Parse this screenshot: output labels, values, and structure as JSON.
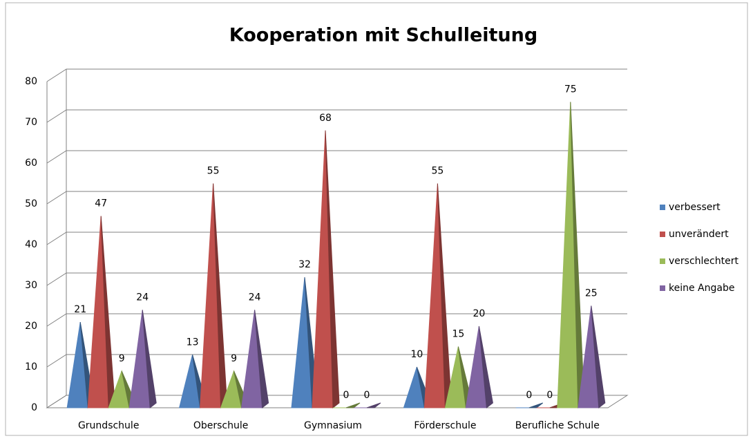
{
  "chart_data": {
    "type": "pyramid",
    "title": "Kooperation mit Schulleitung",
    "categories": [
      "Grundschule",
      "Oberschule",
      "Gymnasium",
      "Förderschule",
      "Berufliche Schule"
    ],
    "series": [
      {
        "name": "verbessert",
        "color": "#4f81bd",
        "values": [
          21,
          13,
          32,
          10,
          0
        ]
      },
      {
        "name": "unverändert",
        "color": "#c0504d",
        "values": [
          47,
          55,
          68,
          55,
          0
        ]
      },
      {
        "name": "verschlechtert",
        "color": "#9bbb59",
        "values": [
          9,
          9,
          0,
          15,
          75
        ]
      },
      {
        "name": "keine Angabe",
        "color": "#8064a2",
        "values": [
          24,
          24,
          0,
          20,
          25
        ]
      }
    ],
    "ylim": [
      0,
      80
    ],
    "yticks": [
      0,
      10,
      20,
      30,
      40,
      50,
      60,
      70,
      80
    ],
    "grid": true,
    "legend": "right"
  }
}
